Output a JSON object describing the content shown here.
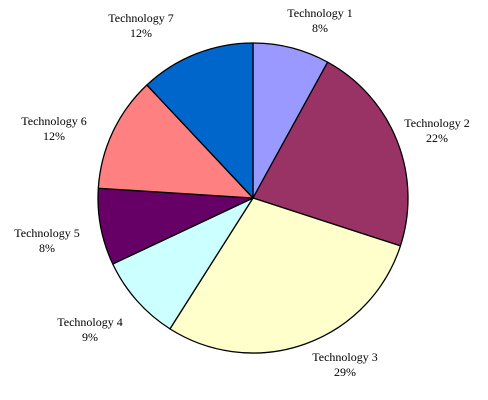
{
  "chart_data": {
    "type": "pie",
    "title": "",
    "start_angle_deg": 0,
    "direction": "clockwise",
    "legend": "none",
    "slices": [
      {
        "label": "Technology 1",
        "value": 8,
        "value_label": "8%",
        "color": "#9999FF"
      },
      {
        "label": "Technology 2",
        "value": 22,
        "value_label": "22%",
        "color": "#993366"
      },
      {
        "label": "Technology 3",
        "value": 29,
        "value_label": "29%",
        "color": "#FFFFCC"
      },
      {
        "label": "Technology 4",
        "value": 9,
        "value_label": "9%",
        "color": "#CCFFFF"
      },
      {
        "label": "Technology 5",
        "value": 8,
        "value_label": "8%",
        "color": "#660066"
      },
      {
        "label": "Technology 6",
        "value": 12,
        "value_label": "12%",
        "color": "#FF8080"
      },
      {
        "label": "Technology 7",
        "value": 12,
        "value_label": "12%",
        "color": "#0066CC"
      }
    ]
  }
}
